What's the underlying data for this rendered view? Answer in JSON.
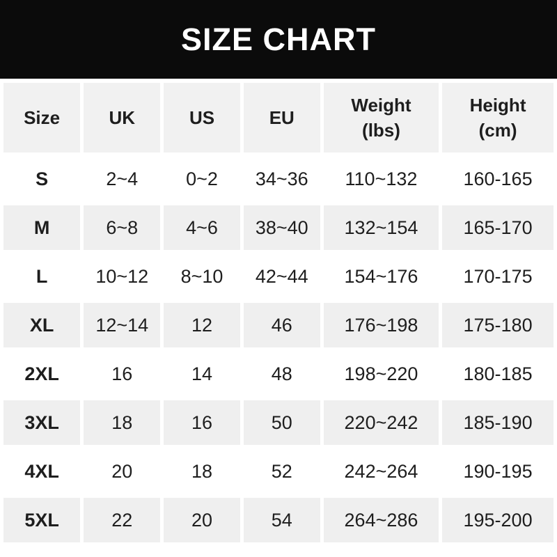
{
  "banner": {
    "title": "SIZE CHART"
  },
  "colors": {
    "banner_bg": "#0b0b0b",
    "banner_text": "#ffffff",
    "header_row_bg": "#f1f1f1",
    "alt_row_bg": "#efefef",
    "row_bg": "#ffffff",
    "text": "#1e1e1e"
  },
  "chart_data": {
    "type": "table",
    "title": "SIZE CHART",
    "columns": [
      {
        "label": "Size",
        "sub": ""
      },
      {
        "label": "UK",
        "sub": ""
      },
      {
        "label": "US",
        "sub": ""
      },
      {
        "label": "EU",
        "sub": ""
      },
      {
        "label": "Weight",
        "sub": "(lbs)"
      },
      {
        "label": "Height",
        "sub": "(cm)"
      }
    ],
    "rows": [
      [
        "S",
        "2~4",
        "0~2",
        "34~36",
        "110~132",
        "160-165"
      ],
      [
        "M",
        "6~8",
        "4~6",
        "38~40",
        "132~154",
        "165-170"
      ],
      [
        "L",
        "10~12",
        "8~10",
        "42~44",
        "154~176",
        "170-175"
      ],
      [
        "XL",
        "12~14",
        "12",
        "46",
        "176~198",
        "175-180"
      ],
      [
        "2XL",
        "16",
        "14",
        "48",
        "198~220",
        "180-185"
      ],
      [
        "3XL",
        "18",
        "16",
        "50",
        "220~242",
        "185-190"
      ],
      [
        "4XL",
        "20",
        "18",
        "52",
        "242~264",
        "190-195"
      ],
      [
        "5XL",
        "22",
        "20",
        "54",
        "264~286",
        "195-200"
      ]
    ]
  }
}
